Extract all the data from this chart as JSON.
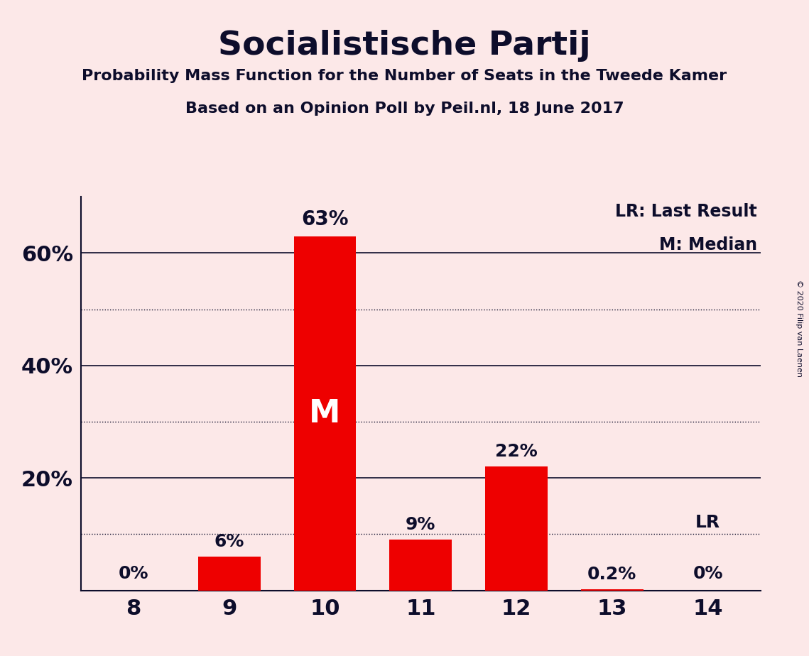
{
  "title": "Socialistische Partij",
  "subtitle1": "Probability Mass Function for the Number of Seats in the Tweede Kamer",
  "subtitle2": "Based on an Opinion Poll by Peil.nl, 18 June 2017",
  "copyright": "© 2020 Filip van Laenen",
  "categories": [
    8,
    9,
    10,
    11,
    12,
    13,
    14
  ],
  "values": [
    0.0,
    6.0,
    63.0,
    9.0,
    22.0,
    0.2,
    0.0
  ],
  "labels": [
    "0%",
    "6%",
    "63%",
    "9%",
    "22%",
    "0.2%",
    "0%"
  ],
  "median_bar": 10,
  "last_result_bar": 14,
  "bar_color": "#ee0000",
  "background_color": "#fce8e8",
  "text_color": "#0d0d2b",
  "legend_lr": "LR: Last Result",
  "legend_m": "M: Median",
  "median_label": "M",
  "lr_label": "LR",
  "ylim": [
    0,
    70
  ],
  "solid_ticks": [
    20,
    40,
    60
  ],
  "dotted_ticks": [
    10,
    30,
    50
  ]
}
